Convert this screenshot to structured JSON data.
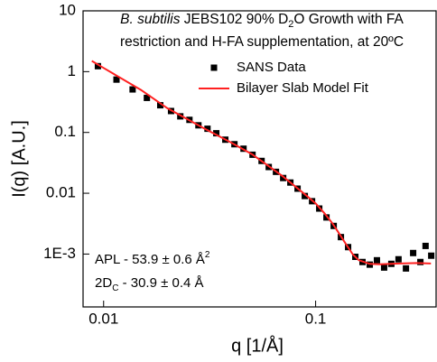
{
  "chart_data": {
    "type": "scatter",
    "title_lines": [
      [
        "B. subtilis",
        " JEBS102 90% D",
        "2",
        "O Growth with FA"
      ],
      [
        "restriction and H-FA supplementation, at 20ºC"
      ]
    ],
    "annotation_lines": [
      [
        "APL - 53.9 ± 0.6 Å",
        "2"
      ],
      [
        "2D",
        "C",
        " - 30.9 ± 0.4 Å"
      ]
    ],
    "x_label": "q [1/Å]",
    "y_label": "I(q) [A.U.]",
    "log_x": true,
    "log_y": true,
    "xlim": [
      0.008,
      0.37
    ],
    "ylim": [
      0.000135,
      10
    ],
    "xticks": [
      0.01,
      0.1
    ],
    "yticks": [
      10,
      1,
      0.1,
      0.01,
      {
        "value": 0.001,
        "label": "1E-3"
      }
    ],
    "series": [
      {
        "name": "SANS Data",
        "color": "#000000",
        "kind": "scatter",
        "x": [
          0.0094,
          0.0115,
          0.0137,
          0.016,
          0.0185,
          0.0208,
          0.023,
          0.0254,
          0.028,
          0.0309,
          0.034,
          0.0375,
          0.0414,
          0.0457,
          0.0504,
          0.0556,
          0.0601,
          0.065,
          0.0703,
          0.076,
          0.0822,
          0.0889,
          0.0962,
          0.104,
          0.1125,
          0.1217,
          0.1316,
          0.1423,
          0.1539,
          0.1664,
          0.18,
          0.1946,
          0.2104,
          0.2275,
          0.246,
          0.2667,
          0.2884,
          0.3119,
          0.33,
          0.351
        ],
        "values": [
          1.23,
          0.74,
          0.51,
          0.37,
          0.28,
          0.225,
          0.184,
          0.161,
          0.131,
          0.115,
          0.097,
          0.076,
          0.064,
          0.054,
          0.043,
          0.034,
          0.027,
          0.0225,
          0.0178,
          0.015,
          0.0119,
          0.009,
          0.0074,
          0.0056,
          0.004,
          0.0029,
          0.0019,
          0.0013,
          0.0009,
          0.00074,
          0.00067,
          0.00079,
          0.0006,
          0.00069,
          0.00082,
          0.00058,
          0.00104,
          0.00074,
          0.00136,
          0.00094
        ]
      },
      {
        "name": "Bilayer Slab Model Fit",
        "color": "#ff2020",
        "kind": "line",
        "x": [
          0.0088,
          0.01,
          0.015,
          0.02,
          0.03,
          0.04,
          0.05,
          0.06,
          0.07,
          0.08,
          0.09,
          0.1,
          0.11,
          0.12,
          0.13,
          0.14,
          0.15,
          0.16,
          0.18,
          0.2,
          0.25,
          0.3,
          0.35
        ],
        "values": [
          1.5,
          1.15,
          0.5,
          0.25,
          0.115,
          0.068,
          0.044,
          0.028,
          0.019,
          0.013,
          0.0093,
          0.0068,
          0.0047,
          0.0032,
          0.0021,
          0.0014,
          0.00098,
          0.00079,
          0.00069,
          0.00068,
          0.0007,
          0.00071,
          0.0007
        ]
      }
    ]
  }
}
